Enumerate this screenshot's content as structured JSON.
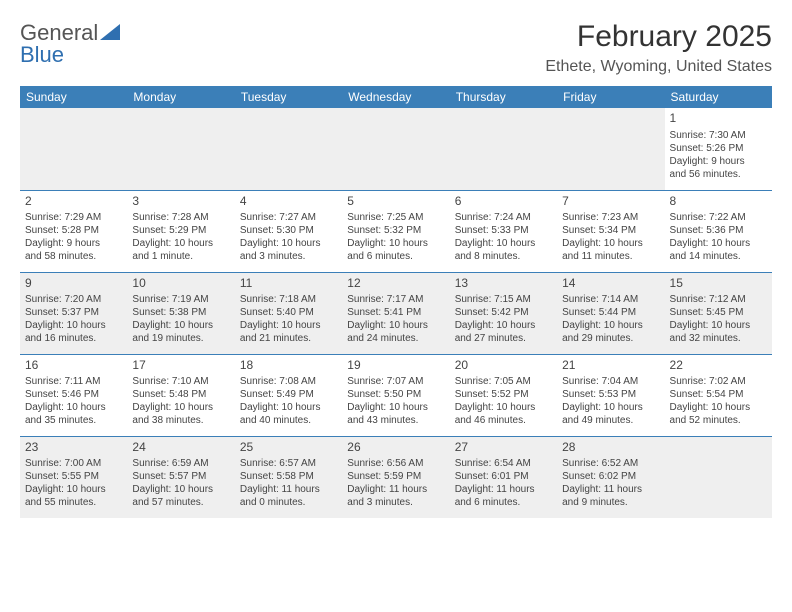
{
  "logo": {
    "part1": "General",
    "part2": "Blue"
  },
  "title": "February 2025",
  "location": "Ethete, Wyoming, United States",
  "headers": [
    "Sunday",
    "Monday",
    "Tuesday",
    "Wednesday",
    "Thursday",
    "Friday",
    "Saturday"
  ],
  "header_bg": "#3b7fb8",
  "header_fg": "#ffffff",
  "row_border": "#3b7fb8",
  "row_alt_bg": "#efefef",
  "row_bg": "#ffffff",
  "text_color": "#444444",
  "rows": [
    {
      "shade": "first",
      "cells": [
        {
          "empty": true
        },
        {
          "empty": true
        },
        {
          "empty": true
        },
        {
          "empty": true
        },
        {
          "empty": true
        },
        {
          "empty": true
        },
        {
          "day": "1",
          "sunrise": "Sunrise: 7:30 AM",
          "sunset": "Sunset: 5:26 PM",
          "dl1": "Daylight: 9 hours",
          "dl2": "and 56 minutes."
        }
      ]
    },
    {
      "shade": "white",
      "cells": [
        {
          "day": "2",
          "sunrise": "Sunrise: 7:29 AM",
          "sunset": "Sunset: 5:28 PM",
          "dl1": "Daylight: 9 hours",
          "dl2": "and 58 minutes."
        },
        {
          "day": "3",
          "sunrise": "Sunrise: 7:28 AM",
          "sunset": "Sunset: 5:29 PM",
          "dl1": "Daylight: 10 hours",
          "dl2": "and 1 minute."
        },
        {
          "day": "4",
          "sunrise": "Sunrise: 7:27 AM",
          "sunset": "Sunset: 5:30 PM",
          "dl1": "Daylight: 10 hours",
          "dl2": "and 3 minutes."
        },
        {
          "day": "5",
          "sunrise": "Sunrise: 7:25 AM",
          "sunset": "Sunset: 5:32 PM",
          "dl1": "Daylight: 10 hours",
          "dl2": "and 6 minutes."
        },
        {
          "day": "6",
          "sunrise": "Sunrise: 7:24 AM",
          "sunset": "Sunset: 5:33 PM",
          "dl1": "Daylight: 10 hours",
          "dl2": "and 8 minutes."
        },
        {
          "day": "7",
          "sunrise": "Sunrise: 7:23 AM",
          "sunset": "Sunset: 5:34 PM",
          "dl1": "Daylight: 10 hours",
          "dl2": "and 11 minutes."
        },
        {
          "day": "8",
          "sunrise": "Sunrise: 7:22 AM",
          "sunset": "Sunset: 5:36 PM",
          "dl1": "Daylight: 10 hours",
          "dl2": "and 14 minutes."
        }
      ]
    },
    {
      "shade": "gray",
      "cells": [
        {
          "day": "9",
          "sunrise": "Sunrise: 7:20 AM",
          "sunset": "Sunset: 5:37 PM",
          "dl1": "Daylight: 10 hours",
          "dl2": "and 16 minutes."
        },
        {
          "day": "10",
          "sunrise": "Sunrise: 7:19 AM",
          "sunset": "Sunset: 5:38 PM",
          "dl1": "Daylight: 10 hours",
          "dl2": "and 19 minutes."
        },
        {
          "day": "11",
          "sunrise": "Sunrise: 7:18 AM",
          "sunset": "Sunset: 5:40 PM",
          "dl1": "Daylight: 10 hours",
          "dl2": "and 21 minutes."
        },
        {
          "day": "12",
          "sunrise": "Sunrise: 7:17 AM",
          "sunset": "Sunset: 5:41 PM",
          "dl1": "Daylight: 10 hours",
          "dl2": "and 24 minutes."
        },
        {
          "day": "13",
          "sunrise": "Sunrise: 7:15 AM",
          "sunset": "Sunset: 5:42 PM",
          "dl1": "Daylight: 10 hours",
          "dl2": "and 27 minutes."
        },
        {
          "day": "14",
          "sunrise": "Sunrise: 7:14 AM",
          "sunset": "Sunset: 5:44 PM",
          "dl1": "Daylight: 10 hours",
          "dl2": "and 29 minutes."
        },
        {
          "day": "15",
          "sunrise": "Sunrise: 7:12 AM",
          "sunset": "Sunset: 5:45 PM",
          "dl1": "Daylight: 10 hours",
          "dl2": "and 32 minutes."
        }
      ]
    },
    {
      "shade": "white",
      "cells": [
        {
          "day": "16",
          "sunrise": "Sunrise: 7:11 AM",
          "sunset": "Sunset: 5:46 PM",
          "dl1": "Daylight: 10 hours",
          "dl2": "and 35 minutes."
        },
        {
          "day": "17",
          "sunrise": "Sunrise: 7:10 AM",
          "sunset": "Sunset: 5:48 PM",
          "dl1": "Daylight: 10 hours",
          "dl2": "and 38 minutes."
        },
        {
          "day": "18",
          "sunrise": "Sunrise: 7:08 AM",
          "sunset": "Sunset: 5:49 PM",
          "dl1": "Daylight: 10 hours",
          "dl2": "and 40 minutes."
        },
        {
          "day": "19",
          "sunrise": "Sunrise: 7:07 AM",
          "sunset": "Sunset: 5:50 PM",
          "dl1": "Daylight: 10 hours",
          "dl2": "and 43 minutes."
        },
        {
          "day": "20",
          "sunrise": "Sunrise: 7:05 AM",
          "sunset": "Sunset: 5:52 PM",
          "dl1": "Daylight: 10 hours",
          "dl2": "and 46 minutes."
        },
        {
          "day": "21",
          "sunrise": "Sunrise: 7:04 AM",
          "sunset": "Sunset: 5:53 PM",
          "dl1": "Daylight: 10 hours",
          "dl2": "and 49 minutes."
        },
        {
          "day": "22",
          "sunrise": "Sunrise: 7:02 AM",
          "sunset": "Sunset: 5:54 PM",
          "dl1": "Daylight: 10 hours",
          "dl2": "and 52 minutes."
        }
      ]
    },
    {
      "shade": "gray",
      "cells": [
        {
          "day": "23",
          "sunrise": "Sunrise: 7:00 AM",
          "sunset": "Sunset: 5:55 PM",
          "dl1": "Daylight: 10 hours",
          "dl2": "and 55 minutes."
        },
        {
          "day": "24",
          "sunrise": "Sunrise: 6:59 AM",
          "sunset": "Sunset: 5:57 PM",
          "dl1": "Daylight: 10 hours",
          "dl2": "and 57 minutes."
        },
        {
          "day": "25",
          "sunrise": "Sunrise: 6:57 AM",
          "sunset": "Sunset: 5:58 PM",
          "dl1": "Daylight: 11 hours",
          "dl2": "and 0 minutes."
        },
        {
          "day": "26",
          "sunrise": "Sunrise: 6:56 AM",
          "sunset": "Sunset: 5:59 PM",
          "dl1": "Daylight: 11 hours",
          "dl2": "and 3 minutes."
        },
        {
          "day": "27",
          "sunrise": "Sunrise: 6:54 AM",
          "sunset": "Sunset: 6:01 PM",
          "dl1": "Daylight: 11 hours",
          "dl2": "and 6 minutes."
        },
        {
          "day": "28",
          "sunrise": "Sunrise: 6:52 AM",
          "sunset": "Sunset: 6:02 PM",
          "dl1": "Daylight: 11 hours",
          "dl2": "and 9 minutes."
        },
        {
          "empty": true
        }
      ]
    }
  ]
}
